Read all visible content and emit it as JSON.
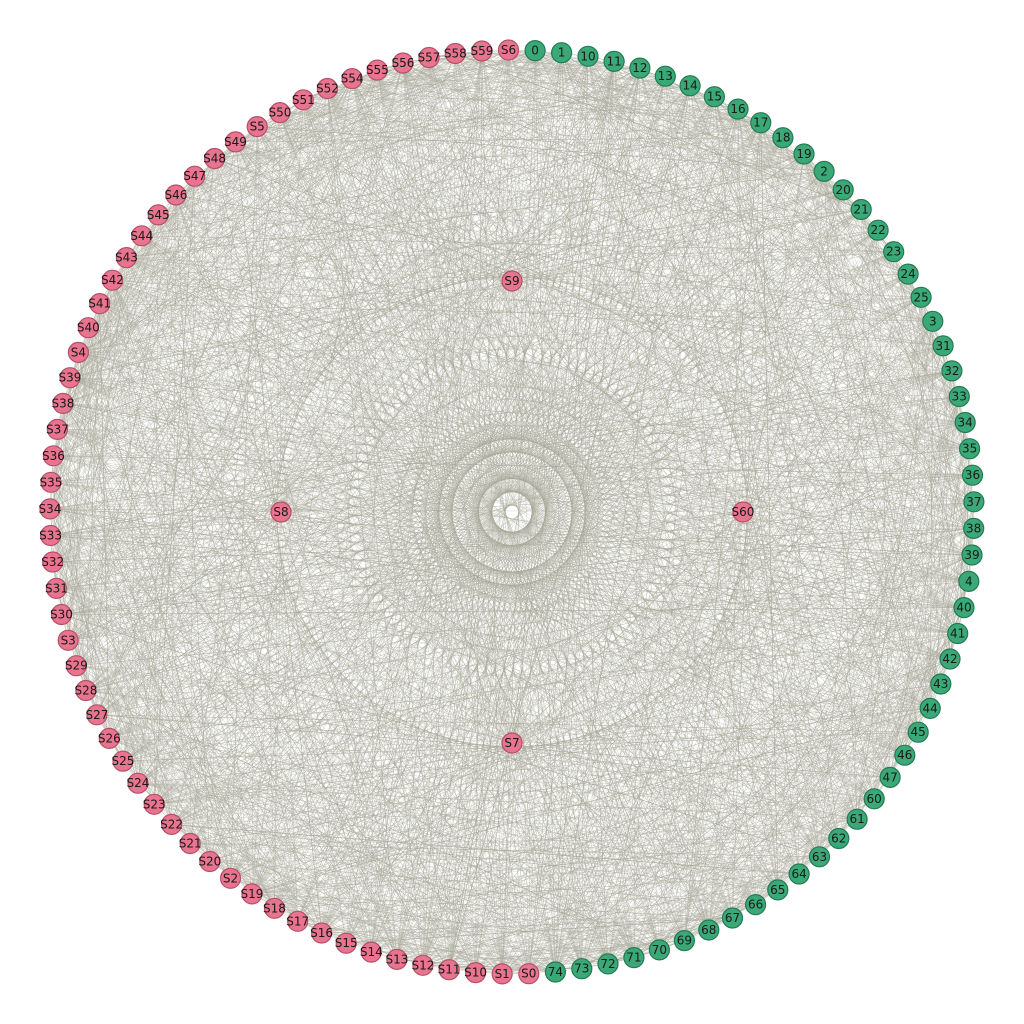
{
  "colors": {
    "edge": "#a9a99a",
    "numeric_node_fill": "#3aa877",
    "numeric_node_stroke": "#237a54",
    "s_node_fill": "#e8748f",
    "s_node_stroke": "#b45068"
  },
  "graph": {
    "layout": "circular-with-inner-hubs",
    "ring_nodes": [
      {
        "label": "0",
        "group": "numeric"
      },
      {
        "label": "1",
        "group": "numeric"
      },
      {
        "label": "10",
        "group": "numeric"
      },
      {
        "label": "11",
        "group": "numeric"
      },
      {
        "label": "12",
        "group": "numeric"
      },
      {
        "label": "13",
        "group": "numeric"
      },
      {
        "label": "14",
        "group": "numeric"
      },
      {
        "label": "15",
        "group": "numeric"
      },
      {
        "label": "16",
        "group": "numeric"
      },
      {
        "label": "17",
        "group": "numeric"
      },
      {
        "label": "18",
        "group": "numeric"
      },
      {
        "label": "19",
        "group": "numeric"
      },
      {
        "label": "2",
        "group": "numeric"
      },
      {
        "label": "20",
        "group": "numeric"
      },
      {
        "label": "21",
        "group": "numeric"
      },
      {
        "label": "22",
        "group": "numeric"
      },
      {
        "label": "23",
        "group": "numeric"
      },
      {
        "label": "24",
        "group": "numeric"
      },
      {
        "label": "25",
        "group": "numeric"
      },
      {
        "label": "3",
        "group": "numeric"
      },
      {
        "label": "31",
        "group": "numeric"
      },
      {
        "label": "32",
        "group": "numeric"
      },
      {
        "label": "33",
        "group": "numeric"
      },
      {
        "label": "34",
        "group": "numeric"
      },
      {
        "label": "35",
        "group": "numeric"
      },
      {
        "label": "36",
        "group": "numeric"
      },
      {
        "label": "37",
        "group": "numeric"
      },
      {
        "label": "38",
        "group": "numeric"
      },
      {
        "label": "39",
        "group": "numeric"
      },
      {
        "label": "4",
        "group": "numeric"
      },
      {
        "label": "40",
        "group": "numeric"
      },
      {
        "label": "41",
        "group": "numeric"
      },
      {
        "label": "42",
        "group": "numeric"
      },
      {
        "label": "43",
        "group": "numeric"
      },
      {
        "label": "44",
        "group": "numeric"
      },
      {
        "label": "45",
        "group": "numeric"
      },
      {
        "label": "46",
        "group": "numeric"
      },
      {
        "label": "47",
        "group": "numeric"
      },
      {
        "label": "60",
        "group": "numeric"
      },
      {
        "label": "61",
        "group": "numeric"
      },
      {
        "label": "62",
        "group": "numeric"
      },
      {
        "label": "63",
        "group": "numeric"
      },
      {
        "label": "64",
        "group": "numeric"
      },
      {
        "label": "65",
        "group": "numeric"
      },
      {
        "label": "66",
        "group": "numeric"
      },
      {
        "label": "67",
        "group": "numeric"
      },
      {
        "label": "68",
        "group": "numeric"
      },
      {
        "label": "69",
        "group": "numeric"
      },
      {
        "label": "70",
        "group": "numeric"
      },
      {
        "label": "71",
        "group": "numeric"
      },
      {
        "label": "72",
        "group": "numeric"
      },
      {
        "label": "73",
        "group": "numeric"
      },
      {
        "label": "74",
        "group": "numeric"
      },
      {
        "label": "S0",
        "group": "s"
      },
      {
        "label": "S1",
        "group": "s"
      },
      {
        "label": "S10",
        "group": "s"
      },
      {
        "label": "S11",
        "group": "s"
      },
      {
        "label": "S12",
        "group": "s"
      },
      {
        "label": "S13",
        "group": "s"
      },
      {
        "label": "S14",
        "group": "s"
      },
      {
        "label": "S15",
        "group": "s"
      },
      {
        "label": "S16",
        "group": "s"
      },
      {
        "label": "S17",
        "group": "s"
      },
      {
        "label": "S18",
        "group": "s"
      },
      {
        "label": "S19",
        "group": "s"
      },
      {
        "label": "S2",
        "group": "s"
      },
      {
        "label": "S20",
        "group": "s"
      },
      {
        "label": "S21",
        "group": "s"
      },
      {
        "label": "S22",
        "group": "s"
      },
      {
        "label": "S23",
        "group": "s"
      },
      {
        "label": "S24",
        "group": "s"
      },
      {
        "label": "S25",
        "group": "s"
      },
      {
        "label": "S26",
        "group": "s"
      },
      {
        "label": "S27",
        "group": "s"
      },
      {
        "label": "S28",
        "group": "s"
      },
      {
        "label": "S29",
        "group": "s"
      },
      {
        "label": "S3",
        "group": "s"
      },
      {
        "label": "S30",
        "group": "s"
      },
      {
        "label": "S31",
        "group": "s"
      },
      {
        "label": "S32",
        "group": "s"
      },
      {
        "label": "S33",
        "group": "s"
      },
      {
        "label": "S34",
        "group": "s"
      },
      {
        "label": "S35",
        "group": "s"
      },
      {
        "label": "S36",
        "group": "s"
      },
      {
        "label": "S37",
        "group": "s"
      },
      {
        "label": "S38",
        "group": "s"
      },
      {
        "label": "S39",
        "group": "s"
      },
      {
        "label": "S4",
        "group": "s"
      },
      {
        "label": "S40",
        "group": "s"
      },
      {
        "label": "S41",
        "group": "s"
      },
      {
        "label": "S42",
        "group": "s"
      },
      {
        "label": "S43",
        "group": "s"
      },
      {
        "label": "S44",
        "group": "s"
      },
      {
        "label": "S45",
        "group": "s"
      },
      {
        "label": "S46",
        "group": "s"
      },
      {
        "label": "S47",
        "group": "s"
      },
      {
        "label": "S48",
        "group": "s"
      },
      {
        "label": "S49",
        "group": "s"
      },
      {
        "label": "S5",
        "group": "s"
      },
      {
        "label": "S50",
        "group": "s"
      },
      {
        "label": "S51",
        "group": "s"
      },
      {
        "label": "S52",
        "group": "s"
      },
      {
        "label": "S54",
        "group": "s"
      },
      {
        "label": "S55",
        "group": "s"
      },
      {
        "label": "S56",
        "group": "s"
      },
      {
        "label": "S57",
        "group": "s"
      },
      {
        "label": "S58",
        "group": "s"
      },
      {
        "label": "S59",
        "group": "s"
      },
      {
        "label": "S6",
        "group": "s"
      }
    ],
    "hub_nodes": [
      {
        "label": "S9",
        "group": "s",
        "direction": "top"
      },
      {
        "label": "S60",
        "group": "s",
        "direction": "right"
      },
      {
        "label": "S7",
        "group": "s",
        "direction": "bottom"
      },
      {
        "label": "S8",
        "group": "s",
        "direction": "left"
      }
    ]
  }
}
